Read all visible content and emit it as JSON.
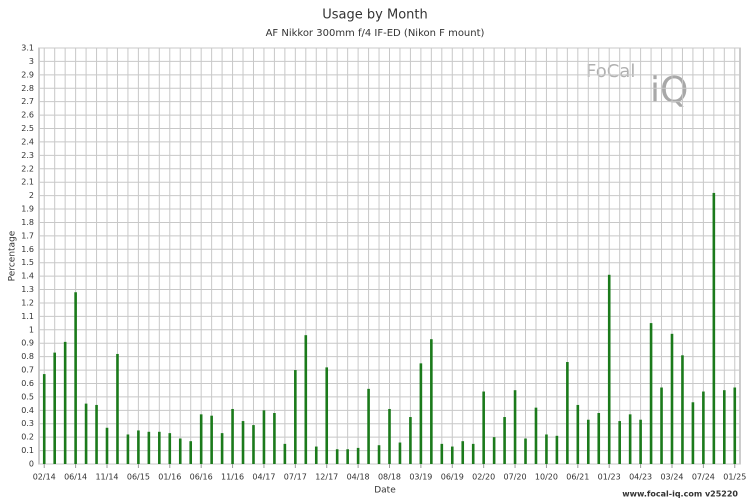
{
  "chart_data": {
    "type": "bar",
    "title": "Usage by Month",
    "subtitle": "AF Nikkor 300mm f/4 IF-ED (Nikon F mount)",
    "x_label": "Date",
    "y_label": "Percentage",
    "footer": "www.focal-iq.com  v25220",
    "watermark": [
      "FoCal",
      "iQ"
    ],
    "color": "#1b7a1b",
    "grid": true,
    "categories": [
      "02/14",
      null,
      null,
      "06/14",
      null,
      null,
      "11/14",
      null,
      null,
      "06/15",
      null,
      null,
      "01/16",
      null,
      null,
      "06/16",
      null,
      null,
      "11/16",
      null,
      null,
      "04/17",
      null,
      null,
      "07/17",
      null,
      null,
      "12/17",
      null,
      null,
      "04/18",
      null,
      null,
      "08/18",
      null,
      null,
      "03/19",
      null,
      null,
      "06/19",
      null,
      null,
      "02/20",
      null,
      null,
      "07/20",
      null,
      null,
      "10/20",
      null,
      null,
      "06/21",
      null,
      null,
      "01/23",
      null,
      null,
      "04/23",
      null,
      null,
      "03/24",
      null,
      null,
      "07/24",
      null,
      null,
      "01/25"
    ],
    "values": [
      0.67,
      0.83,
      0.91,
      1.28,
      0.45,
      0.44,
      0.27,
      0.82,
      0.22,
      0.25,
      0.24,
      0.24,
      0.23,
      0.19,
      0.17,
      0.37,
      0.36,
      0.23,
      0.41,
      0.32,
      0.29,
      0.4,
      0.38,
      0.15,
      0.7,
      0.96,
      0.13,
      0.72,
      0.11,
      0.11,
      0.12,
      0.56,
      0.14,
      0.41,
      0.16,
      0.35,
      0.75,
      0.93,
      0.15,
      0.13,
      0.17,
      0.15,
      0.54,
      0.2,
      0.35,
      0.55,
      0.19,
      0.42,
      0.22,
      0.21,
      0.76,
      0.44,
      0.33,
      0.38,
      1.41,
      0.32,
      0.37,
      0.33,
      1.05,
      0.57,
      0.97,
      0.81,
      0.46,
      0.54,
      2.02,
      0.55,
      0.57
    ],
    "ylim": [
      0,
      3.1
    ],
    "yticks": [
      0,
      0.1,
      0.2,
      0.3,
      0.4,
      0.5,
      0.6,
      0.7,
      0.8,
      0.9,
      1,
      1.1,
      1.2,
      1.3,
      1.4,
      1.5,
      1.6,
      1.7,
      1.8,
      1.9,
      2,
      2.1,
      2.2,
      2.3,
      2.4,
      2.5,
      2.6,
      2.7,
      2.8,
      2.9,
      3,
      3.1
    ]
  }
}
